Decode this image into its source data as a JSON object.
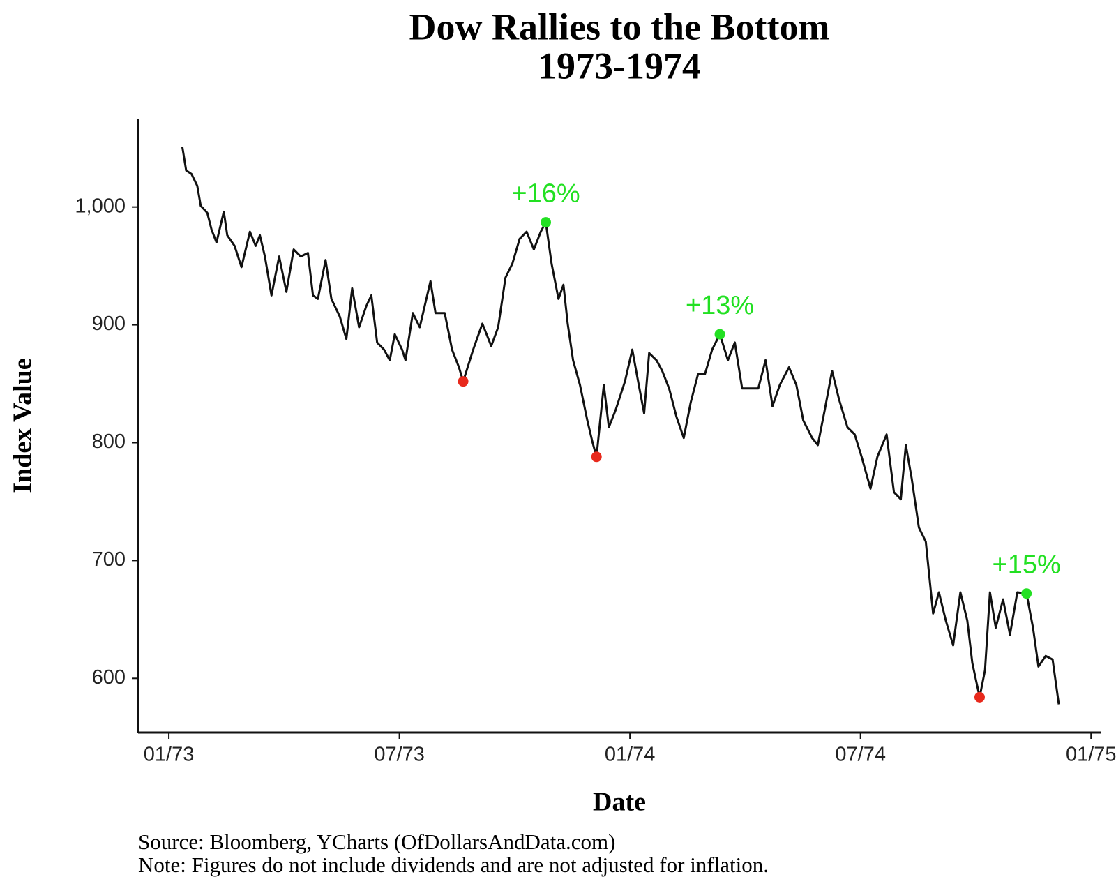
{
  "chart_data": {
    "type": "line",
    "title": "Dow Rallies to the Bottom",
    "subtitle": "1973-1974",
    "x_label": "Date",
    "y_label": "Index Value",
    "source": "Source: Bloomberg, YCharts (OfDollarsAndData.com)",
    "note": "Note: Figures do not include dividends and are not adjusted for inflation.",
    "color": "#111111",
    "grid": false,
    "xlim": [
      -0.8,
      24.25
    ],
    "ylim": [
      554,
      1075
    ],
    "xticks": [
      {
        "value": 0,
        "label": "01/73"
      },
      {
        "value": 6,
        "label": "07/73"
      },
      {
        "value": 12,
        "label": "01/74"
      },
      {
        "value": 18,
        "label": "07/74"
      },
      {
        "value": 24,
        "label": "01/75"
      }
    ],
    "yticks": [
      600,
      700,
      800,
      900,
      {
        "value": 1000,
        "label": "1,000"
      }
    ],
    "x": [
      0.35,
      0.45,
      0.59,
      0.74,
      0.83,
      1.0,
      1.11,
      1.24,
      1.43,
      1.52,
      1.71,
      1.89,
      2.11,
      2.26,
      2.37,
      2.5,
      2.67,
      2.87,
      3.06,
      3.25,
      3.43,
      3.62,
      3.75,
      3.88,
      4.08,
      4.23,
      4.45,
      4.62,
      4.77,
      4.95,
      5.14,
      5.27,
      5.42,
      5.6,
      5.75,
      5.88,
      6.07,
      6.16,
      6.35,
      6.53,
      6.81,
      6.94,
      7.18,
      7.37,
      7.55,
      7.66,
      7.92,
      8.16,
      8.39,
      8.57,
      8.76,
      8.94,
      9.13,
      9.31,
      9.5,
      9.68,
      9.81,
      9.96,
      10.14,
      10.27,
      10.38,
      10.52,
      10.7,
      10.89,
      11.02,
      11.13,
      11.32,
      11.45,
      11.63,
      11.87,
      12.06,
      12.23,
      12.37,
      12.5,
      12.69,
      12.84,
      13.02,
      13.21,
      13.4,
      13.58,
      13.77,
      13.95,
      14.14,
      14.34,
      14.55,
      14.73,
      14.92,
      15.16,
      15.34,
      15.53,
      15.71,
      15.9,
      16.14,
      16.33,
      16.51,
      16.74,
      16.89,
      17.07,
      17.26,
      17.44,
      17.66,
      17.85,
      18.03,
      18.26,
      18.44,
      18.68,
      18.87,
      19.05,
      19.18,
      19.33,
      19.52,
      19.7,
      19.89,
      20.04,
      20.22,
      20.41,
      20.6,
      20.78,
      20.91,
      21.1,
      21.24,
      21.37,
      21.52,
      21.71,
      21.89,
      22.08,
      22.32,
      22.49,
      22.63,
      22.82,
      23.0,
      23.16
    ],
    "values": [
      1051,
      1031,
      1028,
      1018,
      1001,
      995,
      981,
      970,
      996,
      976,
      967,
      949,
      979,
      967,
      976,
      958,
      925,
      958,
      928,
      964,
      958,
      961,
      925,
      922,
      955,
      922,
      907,
      888,
      931,
      898,
      916,
      925,
      885,
      879,
      870,
      892,
      879,
      870,
      910,
      898,
      937,
      910,
      910,
      879,
      864,
      852,
      879,
      901,
      882,
      898,
      940,
      952,
      973,
      979,
      964,
      979,
      987,
      952,
      922,
      934,
      901,
      870,
      849,
      819,
      801,
      788,
      849,
      813,
      828,
      852,
      879,
      849,
      825,
      876,
      870,
      861,
      846,
      822,
      804,
      834,
      858,
      858,
      879,
      892,
      870,
      885,
      846,
      846,
      846,
      870,
      831,
      849,
      864,
      849,
      819,
      804,
      798,
      828,
      861,
      837,
      813,
      807,
      788,
      761,
      788,
      807,
      758,
      752,
      798,
      770,
      728,
      716,
      655,
      673,
      649,
      628,
      673,
      649,
      613,
      584,
      607,
      673,
      643,
      667,
      637,
      673,
      672,
      643,
      610,
      619,
      616,
      578
    ],
    "markers": [
      {
        "color": "#e8291c",
        "x": [
          7.66,
          11.13,
          21.1
        ],
        "values": [
          852,
          788,
          584
        ]
      },
      {
        "color": "#22e022",
        "x": [
          9.81,
          14.34,
          22.32
        ],
        "values": [
          987,
          892,
          672
        ],
        "annotations": [
          "+16%",
          "+13%",
          "+15%"
        ]
      }
    ]
  }
}
